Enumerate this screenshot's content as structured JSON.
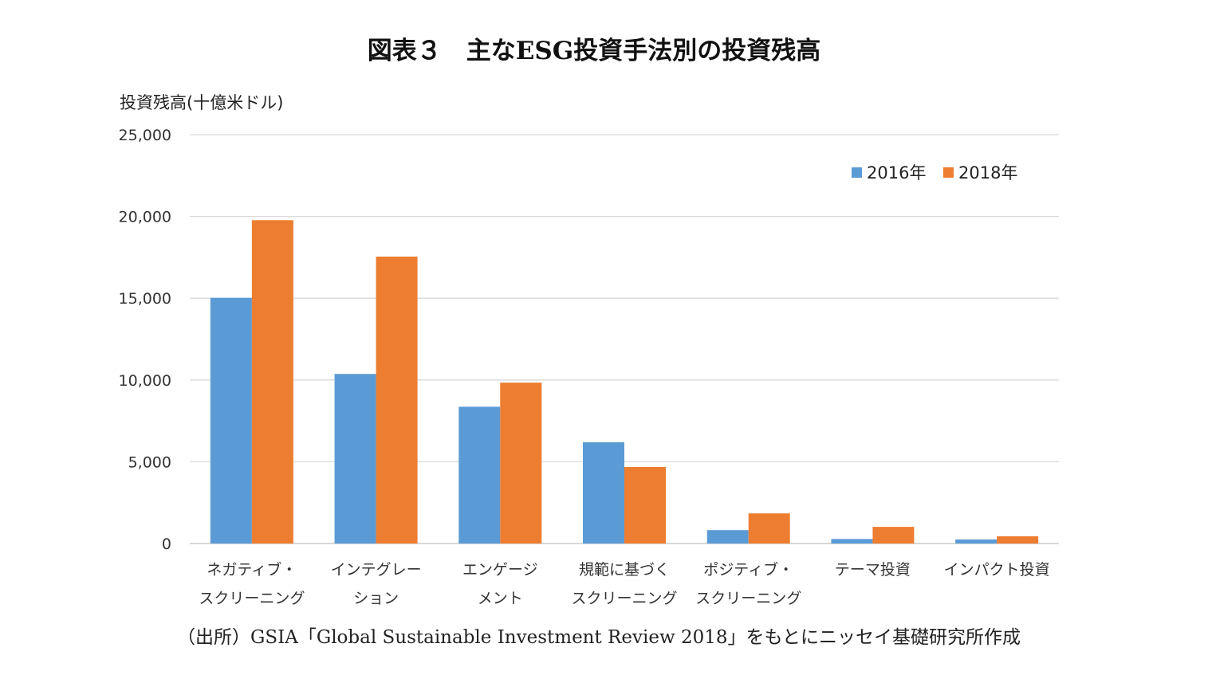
{
  "colors": {
    "s2016": "#5b9bd5",
    "s2018": "#ed7d31",
    "grid": "#d9d9d9"
  },
  "chart_data": {
    "type": "bar",
    "title": "図表３　主なESG投資手法別の投資残高",
    "ylabel": "投資残高(十億米ドル)",
    "xlabel": "",
    "ylim": [
      0,
      25000
    ],
    "yticks": [
      0,
      5000,
      10000,
      15000,
      20000,
      25000
    ],
    "ytick_labels": [
      "0",
      "5,000",
      "10,000",
      "15,000",
      "20,000",
      "25,000"
    ],
    "grid": true,
    "legend_position": "top-right",
    "categories": [
      [
        "ネガティブ・",
        "スクリーニング"
      ],
      [
        "インテグレー",
        "ション"
      ],
      [
        "エンゲージ",
        "メント"
      ],
      [
        "規範に基づく",
        "スクリーニング"
      ],
      [
        "ポジティブ・",
        "スクリーニング"
      ],
      [
        "テーマ投資"
      ],
      [
        "インパクト投資"
      ]
    ],
    "series": [
      {
        "name": "2016年",
        "values": [
          15023,
          10369,
          8365,
          6195,
          818,
          276,
          248
        ]
      },
      {
        "name": "2018年",
        "values": [
          19771,
          17544,
          9835,
          4679,
          1842,
          1018,
          444
        ]
      }
    ]
  },
  "source": "（出所）GSIA「Global Sustainable Investment Review 2018」をもとにニッセイ基礎研究所作成"
}
